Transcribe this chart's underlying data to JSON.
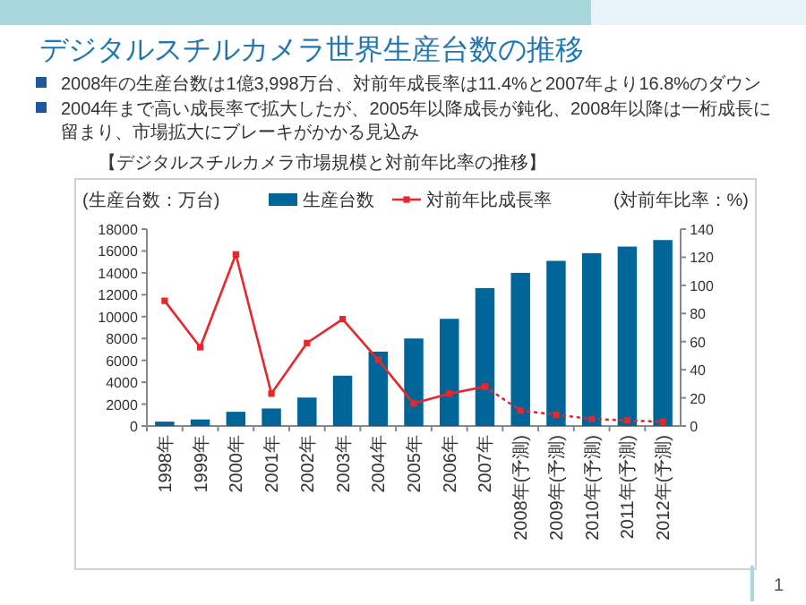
{
  "chart_data": {
    "type": "bar",
    "title": "デジタルスチルカメラ世界生産台数の推移",
    "subtitle": "【デジタルスチルカメラ市場規模と対前年比率の推移】",
    "annotations": [
      "2008年の生産台数は1億3,998万台、対前年成長率は11.4%と2007年より16.8%のダウン",
      "2004年まで高い成長率で拡大したが、2005年以降成長が鈍化、2008年以降は一桁成長に留まり、市場拡大にブレーキがかかる見込み",
      "1"
    ],
    "categories": [
      "1998年",
      "1999年",
      "2000年",
      "2001年",
      "2002年",
      "2003年",
      "2004年",
      "2005年",
      "2006年",
      "2007年",
      "2008年(予測)",
      "2009年(予測)",
      "2010年(予測)",
      "2011年(予測)",
      "2012年(予測)"
    ],
    "ylabel": "(生産台数：万台)",
    "y2label": "(対前年比率：%)",
    "ylim": [
      0,
      18000
    ],
    "yticks": [
      0,
      2000,
      4000,
      6000,
      8000,
      10000,
      12000,
      14000,
      16000,
      18000
    ],
    "y2lim": [
      0,
      140
    ],
    "y2ticks": [
      0,
      20,
      40,
      60,
      80,
      100,
      120,
      140
    ],
    "legend": "top",
    "series": [
      {
        "name": "生産台数",
        "color": "#006699",
        "values": [
          400,
          600,
          1300,
          1600,
          2600,
          4600,
          6800,
          8000,
          9800,
          12600,
          14000,
          15100,
          15800,
          16400,
          17000
        ]
      },
      {
        "name": "対前年比成長率",
        "type": "line",
        "axis": "y2",
        "color": "#e8262b",
        "marker": "square",
        "line_style": "solid",
        "values": [
          89,
          56,
          122,
          23,
          59,
          76,
          47,
          16,
          23,
          28,
          null,
          null,
          null,
          null,
          null
        ]
      },
      {
        "type": "line",
        "axis": "y2",
        "color": "#e8262b",
        "marker": "square",
        "line_style": "dotted",
        "values": [
          null,
          null,
          null,
          null,
          null,
          null,
          null,
          null,
          null,
          28,
          11,
          8,
          5,
          4,
          3
        ]
      }
    ]
  }
}
